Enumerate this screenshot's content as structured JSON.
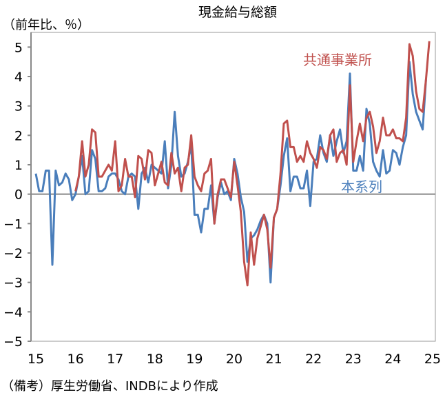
{
  "chart_data": {
    "type": "line",
    "title": "現金給与総額",
    "ylabel": "（前年比、％）",
    "footnote": "（備考）厚生労働省、INDBにより作成",
    "ylim": [
      -5,
      5.5
    ],
    "yticks": [
      "5",
      "4",
      "3",
      "2",
      "1",
      "0",
      "−1",
      "−2",
      "−3",
      "−4",
      "−5"
    ],
    "ytick_values": [
      5,
      4,
      3,
      2,
      1,
      0,
      -1,
      -2,
      -3,
      -4,
      -5
    ],
    "xticks": [
      "15",
      "16",
      "17",
      "18",
      "19",
      "20",
      "21",
      "22",
      "23",
      "24",
      "25"
    ],
    "x_start": "2015-01",
    "x_frequency": "monthly",
    "grid": false,
    "colors": {
      "honkeiretsu": "#4a7ebb",
      "kyotsu": "#c0504d",
      "axis": "#888888"
    },
    "series": [
      {
        "name": "本系列",
        "start": "2015-01",
        "values": [
          0.7,
          0.1,
          0.1,
          0.8,
          0.8,
          -2.4,
          0.8,
          0.3,
          0.4,
          0.7,
          0.5,
          -0.2,
          0.0,
          0.6,
          1.3,
          0.0,
          0.1,
          1.5,
          1.2,
          0.1,
          0.1,
          0.2,
          0.6,
          0.7,
          0.7,
          0.5,
          0.1,
          0.0,
          0.6,
          0.7,
          0.6,
          -0.5,
          0.7,
          0.9,
          0.4,
          1.0,
          0.9,
          0.8,
          0.7,
          1.8,
          0.2,
          1.0,
          2.8,
          1.3,
          0.6,
          0.7,
          1.1,
          1.7,
          -0.7,
          -0.7,
          -1.3,
          -0.5,
          -0.5,
          0.3,
          -1.0,
          -0.1,
          0.4,
          0.0,
          0.1,
          -0.2,
          1.2,
          0.7,
          -0.1,
          -0.6,
          -2.3,
          -1.5,
          -1.4,
          -1.2,
          -0.9,
          -0.7,
          -1.0,
          -3.0,
          -0.8,
          -0.5,
          0.3,
          1.3,
          1.9,
          0.1,
          0.6,
          0.6,
          0.2,
          0.2,
          0.8,
          -0.4,
          1.1,
          1.2,
          2.0,
          1.4,
          1.1,
          2.0,
          1.3,
          1.8,
          2.2,
          1.4,
          1.8,
          4.1,
          0.8,
          0.8,
          1.3,
          0.8,
          2.9,
          2.4,
          1.1,
          0.8,
          0.6,
          1.5,
          0.7,
          0.8,
          1.5,
          1.4,
          1.0,
          1.6,
          2.0,
          4.5,
          3.4,
          2.8,
          2.5,
          2.2,
          3.9
        ]
      },
      {
        "name": "共通事業所",
        "start": "2016-01",
        "values": [
          0.1,
          0.6,
          1.8,
          0.6,
          1.0,
          2.2,
          2.1,
          0.6,
          0.6,
          0.8,
          1.0,
          0.8,
          1.8,
          0.1,
          0.3,
          1.2,
          0.6,
          0.6,
          -0.1,
          1.3,
          1.2,
          0.5,
          1.5,
          1.4,
          0.3,
          0.7,
          1.1,
          0.4,
          0.3,
          1.4,
          0.7,
          0.9,
          0.1,
          0.9,
          1.0,
          2.0,
          0.6,
          0.3,
          0.1,
          0.7,
          0.8,
          1.2,
          -1.0,
          0.0,
          0.5,
          0.5,
          0.2,
          -0.1,
          1.1,
          0.3,
          -0.6,
          -2.3,
          -3.1,
          -1.3,
          -2.4,
          -1.5,
          -1.1,
          -0.7,
          -1.2,
          -2.5,
          -0.8,
          -0.5,
          0.7,
          2.4,
          2.5,
          1.6,
          1.6,
          1.1,
          1.3,
          1.1,
          1.8,
          1.4,
          1.2,
          0.9,
          1.6,
          1.5,
          1.2,
          2.0,
          2.2,
          1.1,
          1.4,
          1.5,
          1.0,
          3.7,
          1.1,
          1.8,
          2.4,
          1.8,
          2.6,
          2.8,
          2.3,
          1.4,
          1.8,
          2.6,
          2.0,
          2.0,
          2.2,
          1.9,
          1.9,
          1.8,
          2.6,
          5.1,
          4.7,
          3.5,
          2.9,
          2.8,
          3.9,
          5.2
        ]
      }
    ]
  }
}
